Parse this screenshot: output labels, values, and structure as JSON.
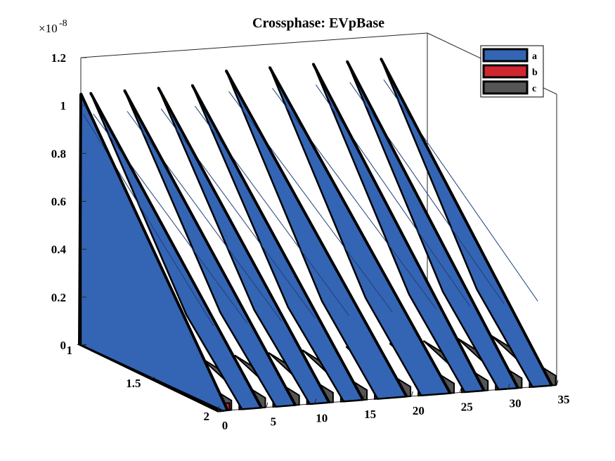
{
  "chart_data": {
    "type": "area",
    "title": "Crossphase: EVpBase",
    "z_exponent_label": "×10",
    "z_exponent_power": "-8",
    "z_ticks": [
      "0",
      "0.2",
      "0.4",
      "0.6",
      "0.8",
      "1",
      "1.2"
    ],
    "x_ticks": [
      "0",
      "5",
      "10",
      "15",
      "20",
      "25",
      "30",
      "35"
    ],
    "y_ticks": [
      "1",
      "1.5",
      "2"
    ],
    "xlim": [
      0,
      35
    ],
    "ylim": [
      1,
      2
    ],
    "zlim": [
      0,
      1.2e-08
    ],
    "grid": false,
    "legend_position": "top-right",
    "series": [
      {
        "name": "a",
        "color": "#3465b4",
        "peaks": [
          1.05e-08,
          1.05e-08,
          1.05e-08,
          1.05e-08,
          1.05e-08,
          1.1e-08,
          1.1e-08,
          1.1e-08,
          1.1e-08,
          1.1e-08
        ]
      },
      {
        "name": "b",
        "color": "#d0262e",
        "peaks": [
          1e-10,
          1e-10,
          1e-10,
          1e-10,
          1e-10,
          1e-10,
          1e-10,
          1e-10,
          1e-10,
          1e-10
        ]
      },
      {
        "name": "c",
        "color": "#555555",
        "peaks": [
          1e-10,
          1e-10,
          1e-10,
          1e-10,
          1e-10,
          1e-10,
          1e-10,
          1e-10,
          1e-10,
          1e-10
        ]
      }
    ],
    "peak_x": [
      1,
      4.5,
      8,
      11.5,
      15,
      19.5,
      24,
      27.5,
      31,
      34.5
    ]
  }
}
